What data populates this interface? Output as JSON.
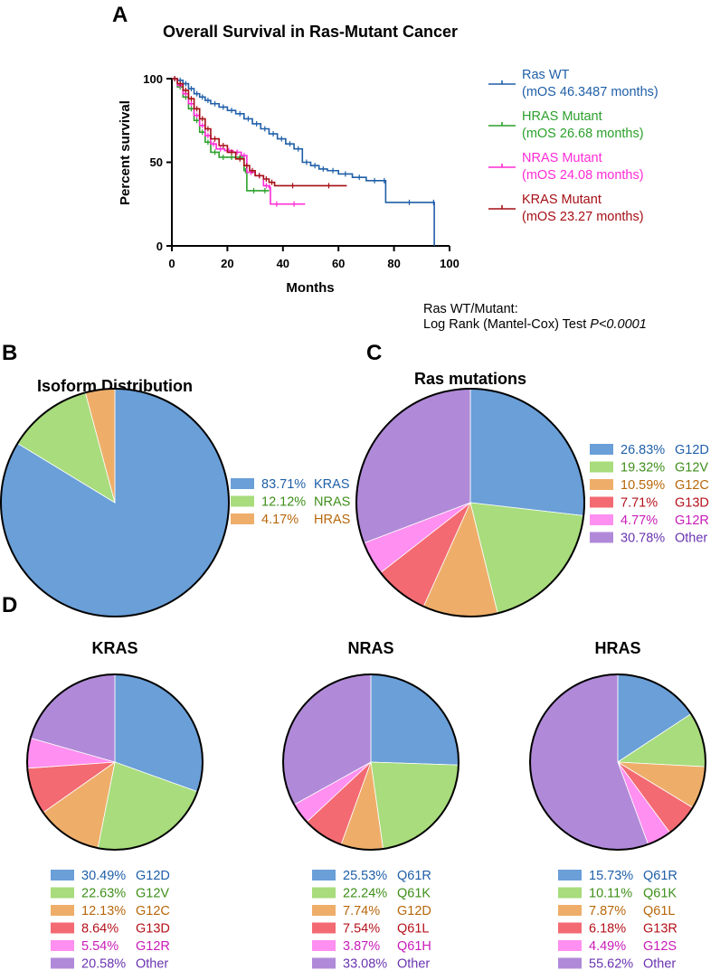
{
  "panels": {
    "a": "A",
    "b": "B",
    "c": "C",
    "d": "D"
  },
  "colors": {
    "kras": "#a50f15",
    "nras": "#ff2bd6",
    "hras": "#2ca02c",
    "wt": "#1f5fa8",
    "pie": [
      "#6a9fd8",
      "#a8dc7c",
      "#eeae6a",
      "#f36a72",
      "#ff8ff0",
      "#b08ad8"
    ],
    "text": [
      "#1f5fa8",
      "#3f8f1a",
      "#b7670a",
      "#b5121b",
      "#c81cb8",
      "#6a34b0"
    ]
  },
  "chart_data": [
    {
      "id": "survival",
      "type": "line",
      "title": "Overall Survival in Ras-Mutant Cancer",
      "xlabel": "Months",
      "ylabel": "Percent survival",
      "xlim": [
        0,
        100
      ],
      "ylim": [
        0,
        100
      ],
      "xticks": [
        "0",
        "20",
        "40",
        "60",
        "80",
        "100"
      ],
      "yticks": [
        "0",
        "50",
        "100"
      ],
      "series": [
        {
          "key": "wt",
          "legend": "Ras WT",
          "legend_sub": "(mOS 46.3487 months)",
          "points": [
            [
              0,
              100
            ],
            [
              2,
              99
            ],
            [
              4,
              97
            ],
            [
              6,
              94
            ],
            [
              8,
              91
            ],
            [
              10,
              89
            ],
            [
              12,
              87
            ],
            [
              14,
              85
            ],
            [
              17,
              83
            ],
            [
              20,
              81
            ],
            [
              23,
              79
            ],
            [
              26,
              76
            ],
            [
              29,
              73
            ],
            [
              32,
              70
            ],
            [
              35,
              67
            ],
            [
              38,
              64
            ],
            [
              41,
              61
            ],
            [
              44,
              58
            ],
            [
              47,
              50
            ],
            [
              50,
              48
            ],
            [
              53,
              46
            ],
            [
              56,
              45
            ],
            [
              60,
              43
            ],
            [
              65,
              41
            ],
            [
              70,
              39
            ],
            [
              76,
              39
            ],
            [
              77,
              26
            ],
            [
              94,
              26
            ],
            [
              94.5,
              0
            ]
          ]
        },
        {
          "key": "hras",
          "legend": "HRAS Mutant",
          "legend_sub": "(mOS 26.68 months)",
          "points": [
            [
              0,
              100
            ],
            [
              2,
              95
            ],
            [
              4,
              89
            ],
            [
              6,
              82
            ],
            [
              8,
              75
            ],
            [
              10,
              68
            ],
            [
              12,
              62
            ],
            [
              14,
              56
            ],
            [
              17,
              53
            ],
            [
              20,
              53
            ],
            [
              23,
              53
            ],
            [
              26,
              45
            ],
            [
              27,
              33
            ],
            [
              32,
              33
            ],
            [
              35,
              33
            ]
          ]
        },
        {
          "key": "nras",
          "legend": "NRAS Mutant",
          "legend_sub": "(mOS 24.08 months)",
          "points": [
            [
              0,
              100
            ],
            [
              2,
              96
            ],
            [
              4,
              91
            ],
            [
              6,
              85
            ],
            [
              8,
              78
            ],
            [
              10,
              72
            ],
            [
              12,
              66
            ],
            [
              14,
              61
            ],
            [
              16,
              58
            ],
            [
              19,
              57
            ],
            [
              22,
              56
            ],
            [
              25,
              54
            ],
            [
              27,
              44
            ],
            [
              30,
              42
            ],
            [
              33,
              36
            ],
            [
              35,
              35
            ],
            [
              35.5,
              25
            ],
            [
              40,
              25
            ],
            [
              48,
              25
            ]
          ]
        },
        {
          "key": "kras",
          "legend": "KRAS Mutant",
          "legend_sub": "(mOS 23.27 months)",
          "points": [
            [
              0,
              100
            ],
            [
              2,
              97
            ],
            [
              4,
              93
            ],
            [
              6,
              88
            ],
            [
              8,
              82
            ],
            [
              10,
              76
            ],
            [
              12,
              70
            ],
            [
              14,
              64
            ],
            [
              17,
              60
            ],
            [
              20,
              56
            ],
            [
              23,
              52
            ],
            [
              26,
              48
            ],
            [
              28,
              45
            ],
            [
              30,
              42
            ],
            [
              33,
              40
            ],
            [
              35,
              38
            ],
            [
              37,
              36
            ],
            [
              50,
              36
            ],
            [
              63,
              36
            ]
          ]
        }
      ],
      "stats_line1": "Ras WT/Mutant:",
      "stats_line2": "Log Rank (Mantel-Cox) Test ",
      "stats_p": "P<0.0001"
    },
    {
      "id": "isoform",
      "type": "pie",
      "title": "Isoform Distribution",
      "labels": [
        "KRAS",
        "NRAS",
        "HRAS"
      ],
      "values": [
        83.71,
        12.12,
        4.17
      ],
      "value_labels": [
        "83.71%",
        "12.12%",
        "4.17%"
      ],
      "colors": [
        "#6a9fd8",
        "#a8dc7c",
        "#eeae6a"
      ],
      "text_colors": [
        "#1f5fa8",
        "#3f8f1a",
        "#b7670a"
      ]
    },
    {
      "id": "mutations",
      "type": "pie",
      "title": "Ras mutations",
      "labels": [
        "G12D",
        "G12V",
        "G12C",
        "G13D",
        "G12R",
        "Other"
      ],
      "values": [
        26.83,
        19.32,
        10.59,
        7.71,
        4.77,
        30.78
      ],
      "value_labels": [
        "26.83%",
        "19.32%",
        "10.59%",
        "7.71%",
        "4.77%",
        "30.78%"
      ]
    },
    {
      "id": "kras-pie",
      "type": "pie",
      "title": "KRAS",
      "labels": [
        "G12D",
        "G12V",
        "G12C",
        "G13D",
        "G12R",
        "Other"
      ],
      "values": [
        30.49,
        22.63,
        12.13,
        8.64,
        5.54,
        20.58
      ],
      "value_labels": [
        "30.49%",
        "22.63%",
        "12.13%",
        "8.64%",
        "5.54%",
        "20.58%"
      ]
    },
    {
      "id": "nras-pie",
      "type": "pie",
      "title": "NRAS",
      "labels": [
        "Q61R",
        "Q61K",
        "G12D",
        "Q61L",
        "Q61H",
        "Other"
      ],
      "values": [
        25.53,
        22.24,
        7.74,
        7.54,
        3.87,
        33.08
      ],
      "value_labels": [
        "25.53%",
        "22.24%",
        "7.74%",
        "7.54%",
        "3.87%",
        "33.08%"
      ]
    },
    {
      "id": "hras-pie",
      "type": "pie",
      "title": "HRAS",
      "labels": [
        "Q61R",
        "Q61K",
        "Q61L",
        "G13R",
        "G12S",
        "Other"
      ],
      "values": [
        15.73,
        10.11,
        7.87,
        6.18,
        4.49,
        55.62
      ],
      "value_labels": [
        "15.73%",
        "10.11%",
        "7.87%",
        "6.18%",
        "4.49%",
        "55.62%"
      ]
    }
  ]
}
